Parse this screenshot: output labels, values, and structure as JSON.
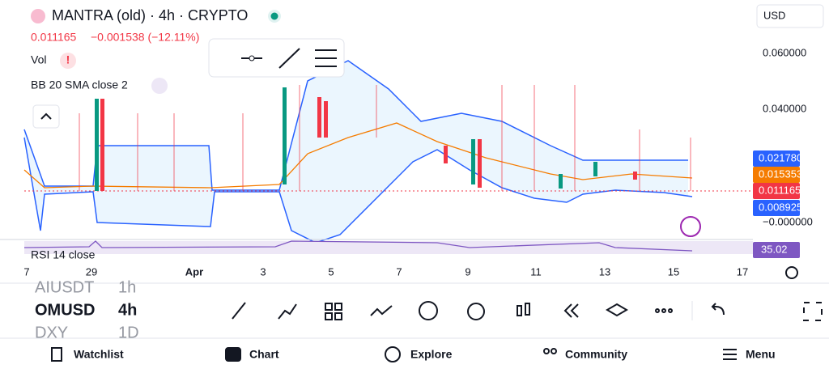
{
  "header": {
    "symbol": "MANTRA (old) · 4h · CRYPTO",
    "price": "0.011165",
    "change": "−0.001538 (−12.11%)",
    "currency": "USD"
  },
  "indicators": [
    "Vol",
    "BB 20 SMA close 2",
    "RSI 14 close"
  ],
  "price_axis": [
    "0.060000",
    "0.040000",
    "−0.000000"
  ],
  "price_badges": [
    {
      "label": "0.021780",
      "color": "#2962ff"
    },
    {
      "label": "0.015353",
      "color": "#f57c00"
    },
    {
      "label": "0.011165",
      "color": "#f23645"
    },
    {
      "label": "0.008925",
      "color": "#2962ff"
    }
  ],
  "rsi_badge": {
    "label": "35.02",
    "color": "#7e57c2"
  },
  "date_axis": [
    "7",
    "29",
    "Apr",
    "3",
    "5",
    "7",
    "9",
    "11",
    "13",
    "15",
    "17"
  ],
  "watchlist": [
    {
      "symbol": "AIUSDT",
      "interval": "1h"
    },
    {
      "symbol": "OMUSD",
      "interval": "4h"
    },
    {
      "symbol": "DXY",
      "interval": "1D"
    }
  ],
  "nav": [
    "Watchlist",
    "Chart",
    "Explore",
    "Community",
    "Menu"
  ]
}
